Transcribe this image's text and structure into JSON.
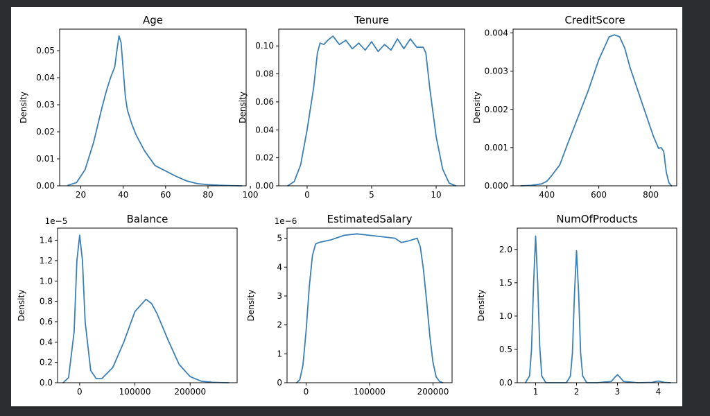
{
  "figure": {
    "background": "#ffffff",
    "page_background": "#2b2d30",
    "line_color": "#3a7fb5"
  },
  "chart_data": [
    {
      "type": "line",
      "title": "Age",
      "xlabel": "",
      "ylabel": "Density",
      "xlim": [
        10,
        98
      ],
      "ylim": [
        0,
        0.058
      ],
      "xticks": [
        20,
        40,
        60,
        80,
        100
      ],
      "xtick_labels": [
        "20",
        "40",
        "60",
        "80",
        "100"
      ],
      "yticks": [
        0,
        0.01,
        0.02,
        0.03,
        0.04,
        0.05
      ],
      "ytick_labels": [
        "0.00",
        "0.01",
        "0.02",
        "0.03",
        "0.04",
        "0.05"
      ],
      "offset_text": "",
      "series": [
        {
          "x": [
            14,
            18,
            22,
            26,
            30,
            32,
            34,
            36,
            37,
            38,
            39,
            40,
            41,
            42,
            44,
            46,
            50,
            55,
            60,
            65,
            70,
            75,
            80,
            85,
            90,
            96
          ],
          "y": [
            0.0002,
            0.0012,
            0.006,
            0.016,
            0.029,
            0.035,
            0.04,
            0.044,
            0.05,
            0.0555,
            0.053,
            0.043,
            0.033,
            0.028,
            0.023,
            0.019,
            0.013,
            0.0075,
            0.0055,
            0.0035,
            0.0018,
            0.0008,
            0.0004,
            0.0002,
            0.0001,
            0.0
          ]
        }
      ]
    },
    {
      "type": "line",
      "title": "Tenure",
      "xlabel": "",
      "ylabel": "Density",
      "xlim": [
        -2.2,
        12.2
      ],
      "ylim": [
        0,
        0.112
      ],
      "xticks": [
        0,
        5,
        10
      ],
      "xtick_labels": [
        "0",
        "5",
        "10"
      ],
      "yticks": [
        0,
        0.02,
        0.04,
        0.06,
        0.08,
        0.1
      ],
      "ytick_labels": [
        "0.00",
        "0.02",
        "0.04",
        "0.06",
        "0.08",
        "0.10"
      ],
      "offset_text": "",
      "series": [
        {
          "x": [
            -1.5,
            -1,
            -0.5,
            0,
            0.5,
            0.8,
            1,
            1.3,
            1.6,
            2,
            2.5,
            3,
            3.5,
            4,
            4.5,
            5,
            5.5,
            6,
            6.5,
            7,
            7.5,
            8,
            8.5,
            9,
            9.2,
            9.5,
            10,
            10.5,
            11,
            11.5
          ],
          "y": [
            0.0,
            0.003,
            0.015,
            0.04,
            0.07,
            0.095,
            0.102,
            0.101,
            0.104,
            0.107,
            0.101,
            0.104,
            0.098,
            0.102,
            0.097,
            0.103,
            0.096,
            0.101,
            0.097,
            0.105,
            0.098,
            0.105,
            0.099,
            0.099,
            0.095,
            0.07,
            0.035,
            0.012,
            0.002,
            0.0
          ]
        }
      ]
    },
    {
      "type": "line",
      "title": "CreditScore",
      "xlabel": "",
      "ylabel": "Density",
      "xlim": [
        270,
        900
      ],
      "ylim": [
        0,
        0.0041
      ],
      "xticks": [
        400,
        600,
        800
      ],
      "xtick_labels": [
        "400",
        "600",
        "800"
      ],
      "yticks": [
        0,
        0.001,
        0.002,
        0.003,
        0.004
      ],
      "ytick_labels": [
        "0.000",
        "0.001",
        "0.002",
        "0.003",
        "0.004"
      ],
      "offset_text": "",
      "series": [
        {
          "x": [
            300,
            340,
            380,
            400,
            420,
            450,
            480,
            520,
            560,
            600,
            620,
            640,
            660,
            680,
            700,
            720,
            750,
            780,
            810,
            830,
            840,
            850,
            860,
            870,
            880
          ],
          "y": [
            0.0,
            1e-05,
            5e-05,
            0.00012,
            0.00028,
            0.00055,
            0.0011,
            0.0018,
            0.0025,
            0.0033,
            0.0036,
            0.0039,
            0.00395,
            0.0039,
            0.0036,
            0.0031,
            0.0025,
            0.0019,
            0.0013,
            0.00098,
            0.001,
            0.0009,
            0.00035,
            8e-05,
            0.0
          ]
        }
      ]
    },
    {
      "type": "line",
      "title": "Balance",
      "xlabel": "",
      "ylabel": "Density",
      "xlim": [
        -40000,
        285000
      ],
      "ylim": [
        0,
        1.52
      ],
      "xticks": [
        0,
        100000,
        200000
      ],
      "xtick_labels": [
        "0",
        "100000",
        "200000"
      ],
      "yticks": [
        0,
        0.2,
        0.4,
        0.6,
        0.8,
        1.0,
        1.2,
        1.4
      ],
      "ytick_labels": [
        "0.0",
        "0.2",
        "0.4",
        "0.6",
        "0.8",
        "1.0",
        "1.2",
        "1.4"
      ],
      "offset_text": "1e−5",
      "series": [
        {
          "x": [
            -30000,
            -20000,
            -10000,
            -5000,
            0,
            5000,
            10000,
            20000,
            30000,
            40000,
            60000,
            80000,
            100000,
            120000,
            130000,
            140000,
            160000,
            180000,
            200000,
            220000,
            240000,
            260000,
            270000
          ],
          "y": [
            0.0,
            0.05,
            0.5,
            1.2,
            1.45,
            1.2,
            0.6,
            0.12,
            0.04,
            0.04,
            0.15,
            0.4,
            0.7,
            0.82,
            0.78,
            0.68,
            0.42,
            0.18,
            0.06,
            0.015,
            0.004,
            0.001,
            0.0
          ]
        }
      ]
    },
    {
      "type": "line",
      "title": "EstimatedSalary",
      "xlabel": "",
      "ylabel": "Density",
      "xlim": [
        -30000,
        230000
      ],
      "ylim": [
        0,
        5.35
      ],
      "xticks": [
        0,
        100000,
        200000
      ],
      "xtick_labels": [
        "0",
        "100000",
        "200000"
      ],
      "yticks": [
        0,
        1,
        2,
        3,
        4,
        5
      ],
      "ytick_labels": [
        "0",
        "1",
        "2",
        "3",
        "4",
        "5"
      ],
      "offset_text": "1e−6",
      "series": [
        {
          "x": [
            -15000,
            -10000,
            -5000,
            0,
            5000,
            10000,
            15000,
            20000,
            40000,
            60000,
            80000,
            100000,
            120000,
            140000,
            150000,
            160000,
            175000,
            180000,
            185000,
            190000,
            195000,
            200000,
            205000,
            210000,
            215000
          ],
          "y": [
            0.0,
            0.1,
            0.6,
            1.8,
            3.3,
            4.4,
            4.8,
            4.85,
            4.95,
            5.1,
            5.15,
            5.1,
            5.05,
            5.0,
            4.85,
            4.9,
            5.0,
            4.7,
            3.9,
            2.8,
            1.6,
            0.7,
            0.2,
            0.05,
            0.0
          ]
        }
      ]
    },
    {
      "type": "line",
      "title": "NumOfProducts",
      "xlabel": "",
      "ylabel": "Density",
      "xlim": [
        0.55,
        4.45
      ],
      "ylim": [
        0,
        2.32
      ],
      "xticks": [
        1,
        2,
        3,
        4
      ],
      "xtick_labels": [
        "1",
        "2",
        "3",
        "4"
      ],
      "yticks": [
        0,
        0.5,
        1.0,
        1.5,
        2.0
      ],
      "ytick_labels": [
        "0.0",
        "0.5",
        "1.0",
        "1.5",
        "2.0"
      ],
      "offset_text": "",
      "series": [
        {
          "x": [
            0.75,
            0.85,
            0.9,
            0.95,
            1.0,
            1.05,
            1.1,
            1.15,
            1.25,
            1.5,
            1.75,
            1.85,
            1.9,
            1.95,
            2.0,
            2.05,
            2.1,
            2.15,
            2.25,
            2.5,
            2.85,
            2.95,
            3.0,
            3.05,
            3.15,
            3.5,
            3.85,
            3.95,
            4.0,
            4.05,
            4.15,
            4.3
          ],
          "y": [
            0.0,
            0.1,
            0.5,
            1.5,
            2.2,
            1.5,
            0.55,
            0.1,
            0.0,
            0.0,
            0.0,
            0.1,
            0.45,
            1.35,
            1.98,
            1.35,
            0.45,
            0.1,
            0.0,
            0.0,
            0.02,
            0.09,
            0.12,
            0.09,
            0.02,
            0.0,
            0.005,
            0.02,
            0.025,
            0.02,
            0.005,
            0.0
          ]
        }
      ]
    }
  ]
}
